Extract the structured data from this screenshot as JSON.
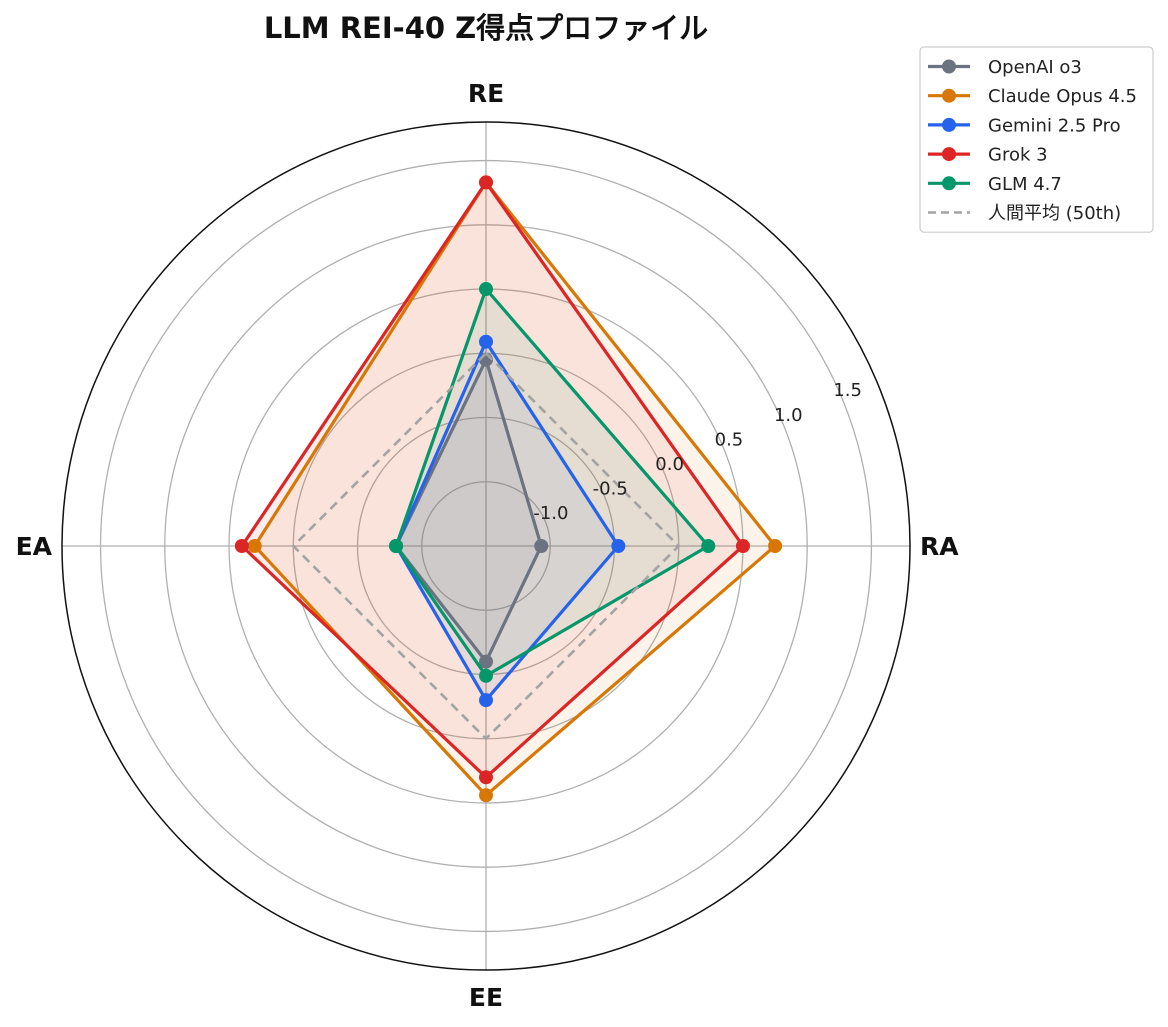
{
  "chart_data": {
    "type": "radar",
    "title": "LLM REI-40 Z得点プロファイル",
    "axes": [
      "RE",
      "RA",
      "EE",
      "EA"
    ],
    "r_range": [
      -1.5,
      1.8
    ],
    "r_ticks": [
      -1.0,
      -0.5,
      0.0,
      0.5,
      1.0,
      1.5
    ],
    "r_tick_labels": [
      "-1.0",
      "-0.5",
      "0.0",
      "0.5",
      "1.0",
      "1.5"
    ],
    "grid": true,
    "legend_position": "top-right",
    "series": [
      {
        "name": "OpenAI o3",
        "color": "#6b7280",
        "style": "solid",
        "fill": true,
        "values": [
          -0.05,
          -1.07,
          -0.6,
          -0.8
        ]
      },
      {
        "name": "Claude Opus 4.5",
        "color": "#d97706",
        "style": "solid",
        "fill": true,
        "values": [
          1.33,
          0.75,
          0.44,
          0.3
        ]
      },
      {
        "name": "Gemini 2.5 Pro",
        "color": "#2563eb",
        "style": "solid",
        "fill": true,
        "values": [
          0.09,
          -0.47,
          -0.3,
          -0.8
        ]
      },
      {
        "name": "Grok 3",
        "color": "#dc2626",
        "style": "solid",
        "fill": true,
        "values": [
          1.33,
          0.5,
          0.3,
          0.4
        ]
      },
      {
        "name": "GLM 4.7",
        "color": "#059669",
        "style": "solid",
        "fill": true,
        "values": [
          0.5,
          0.23,
          -0.49,
          -0.8
        ]
      },
      {
        "name": "人間平均 (50th)",
        "color": "#a3a3a3",
        "style": "dashed",
        "fill": false,
        "values": [
          0.0,
          0.0,
          0.0,
          0.0
        ]
      }
    ]
  }
}
